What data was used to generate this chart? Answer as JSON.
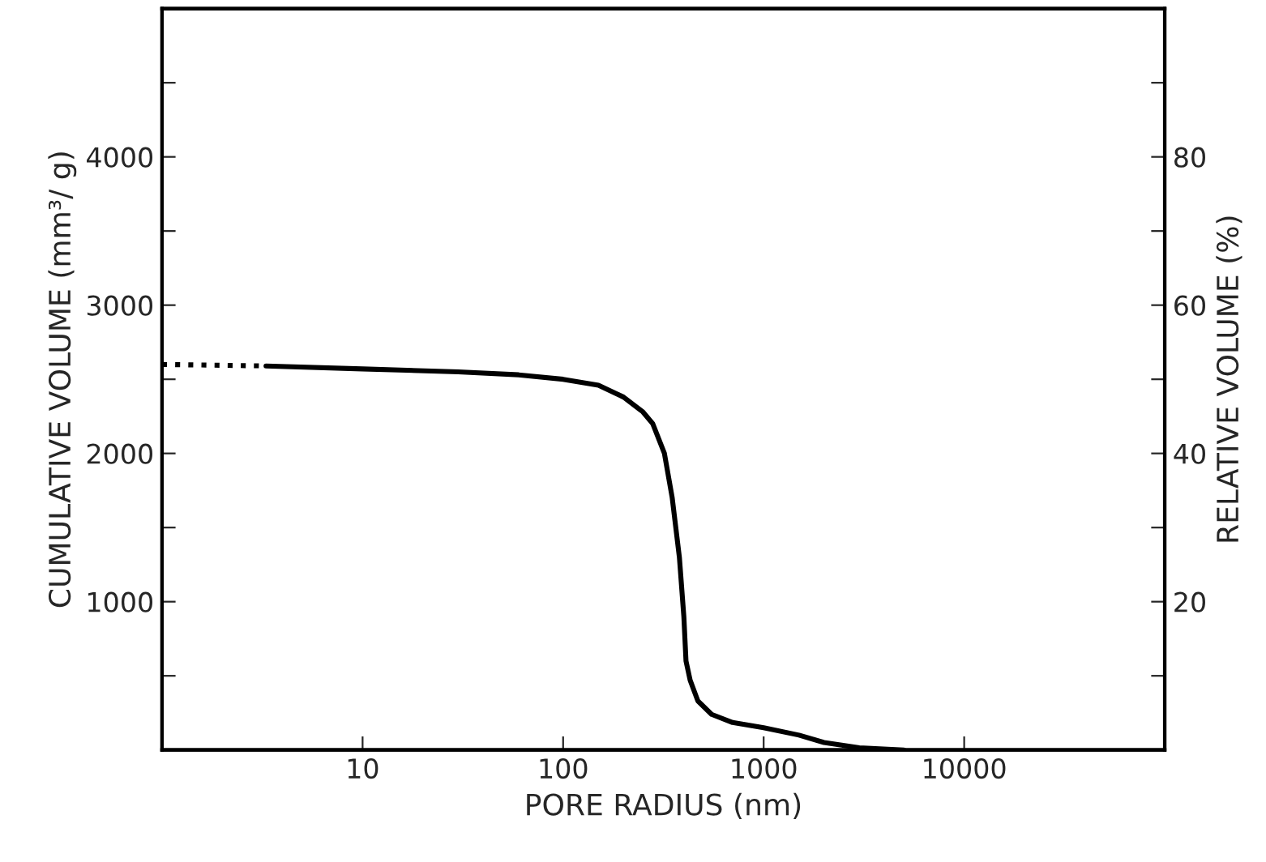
{
  "chart_data": {
    "type": "line",
    "xlabel": "PORE RADIUS (nm)",
    "ylabel": "CUMULATIVE VOLUME (mm³/ g)",
    "y2label": "RELATIVE VOLUME (%)",
    "log": "x",
    "xlim": [
      1,
      100000
    ],
    "xticks": [
      10,
      100,
      1000,
      10000
    ],
    "ylim": [
      0,
      5000
    ],
    "yticks": [
      {
        "value": 500,
        "label": null
      },
      1000,
      {
        "value": 1500,
        "label": null
      },
      2000,
      {
        "value": 2500,
        "label": null
      },
      3000,
      {
        "value": 3500,
        "label": null
      },
      4000,
      {
        "value": 4500,
        "label": null
      }
    ],
    "y2lim": [
      0,
      100
    ],
    "y2ticks": [
      {
        "value": 10,
        "label": null
      },
      20,
      {
        "value": 30,
        "label": null
      },
      40,
      {
        "value": 50,
        "label": null
      },
      60,
      {
        "value": 70,
        "label": null
      },
      80,
      {
        "value": 90,
        "label": null
      }
    ],
    "grid": false,
    "series": [
      {
        "color": "#000000",
        "line_style": "dotted",
        "x": [
          1,
          3.3
        ],
        "values": [
          2600,
          2590
        ]
      },
      {
        "color": "#000000",
        "line_style": "solid",
        "x": [
          3.3,
          10,
          30,
          60,
          100,
          150,
          200,
          250,
          280,
          320,
          350,
          380,
          400,
          410,
          430,
          470,
          550,
          700,
          1000,
          1500,
          2000,
          3000,
          5000
        ],
        "values": [
          2590,
          2570,
          2550,
          2530,
          2500,
          2460,
          2380,
          2280,
          2200,
          2000,
          1700,
          1300,
          900,
          600,
          470,
          330,
          240,
          185,
          150,
          100,
          50,
          15,
          0
        ]
      }
    ]
  }
}
